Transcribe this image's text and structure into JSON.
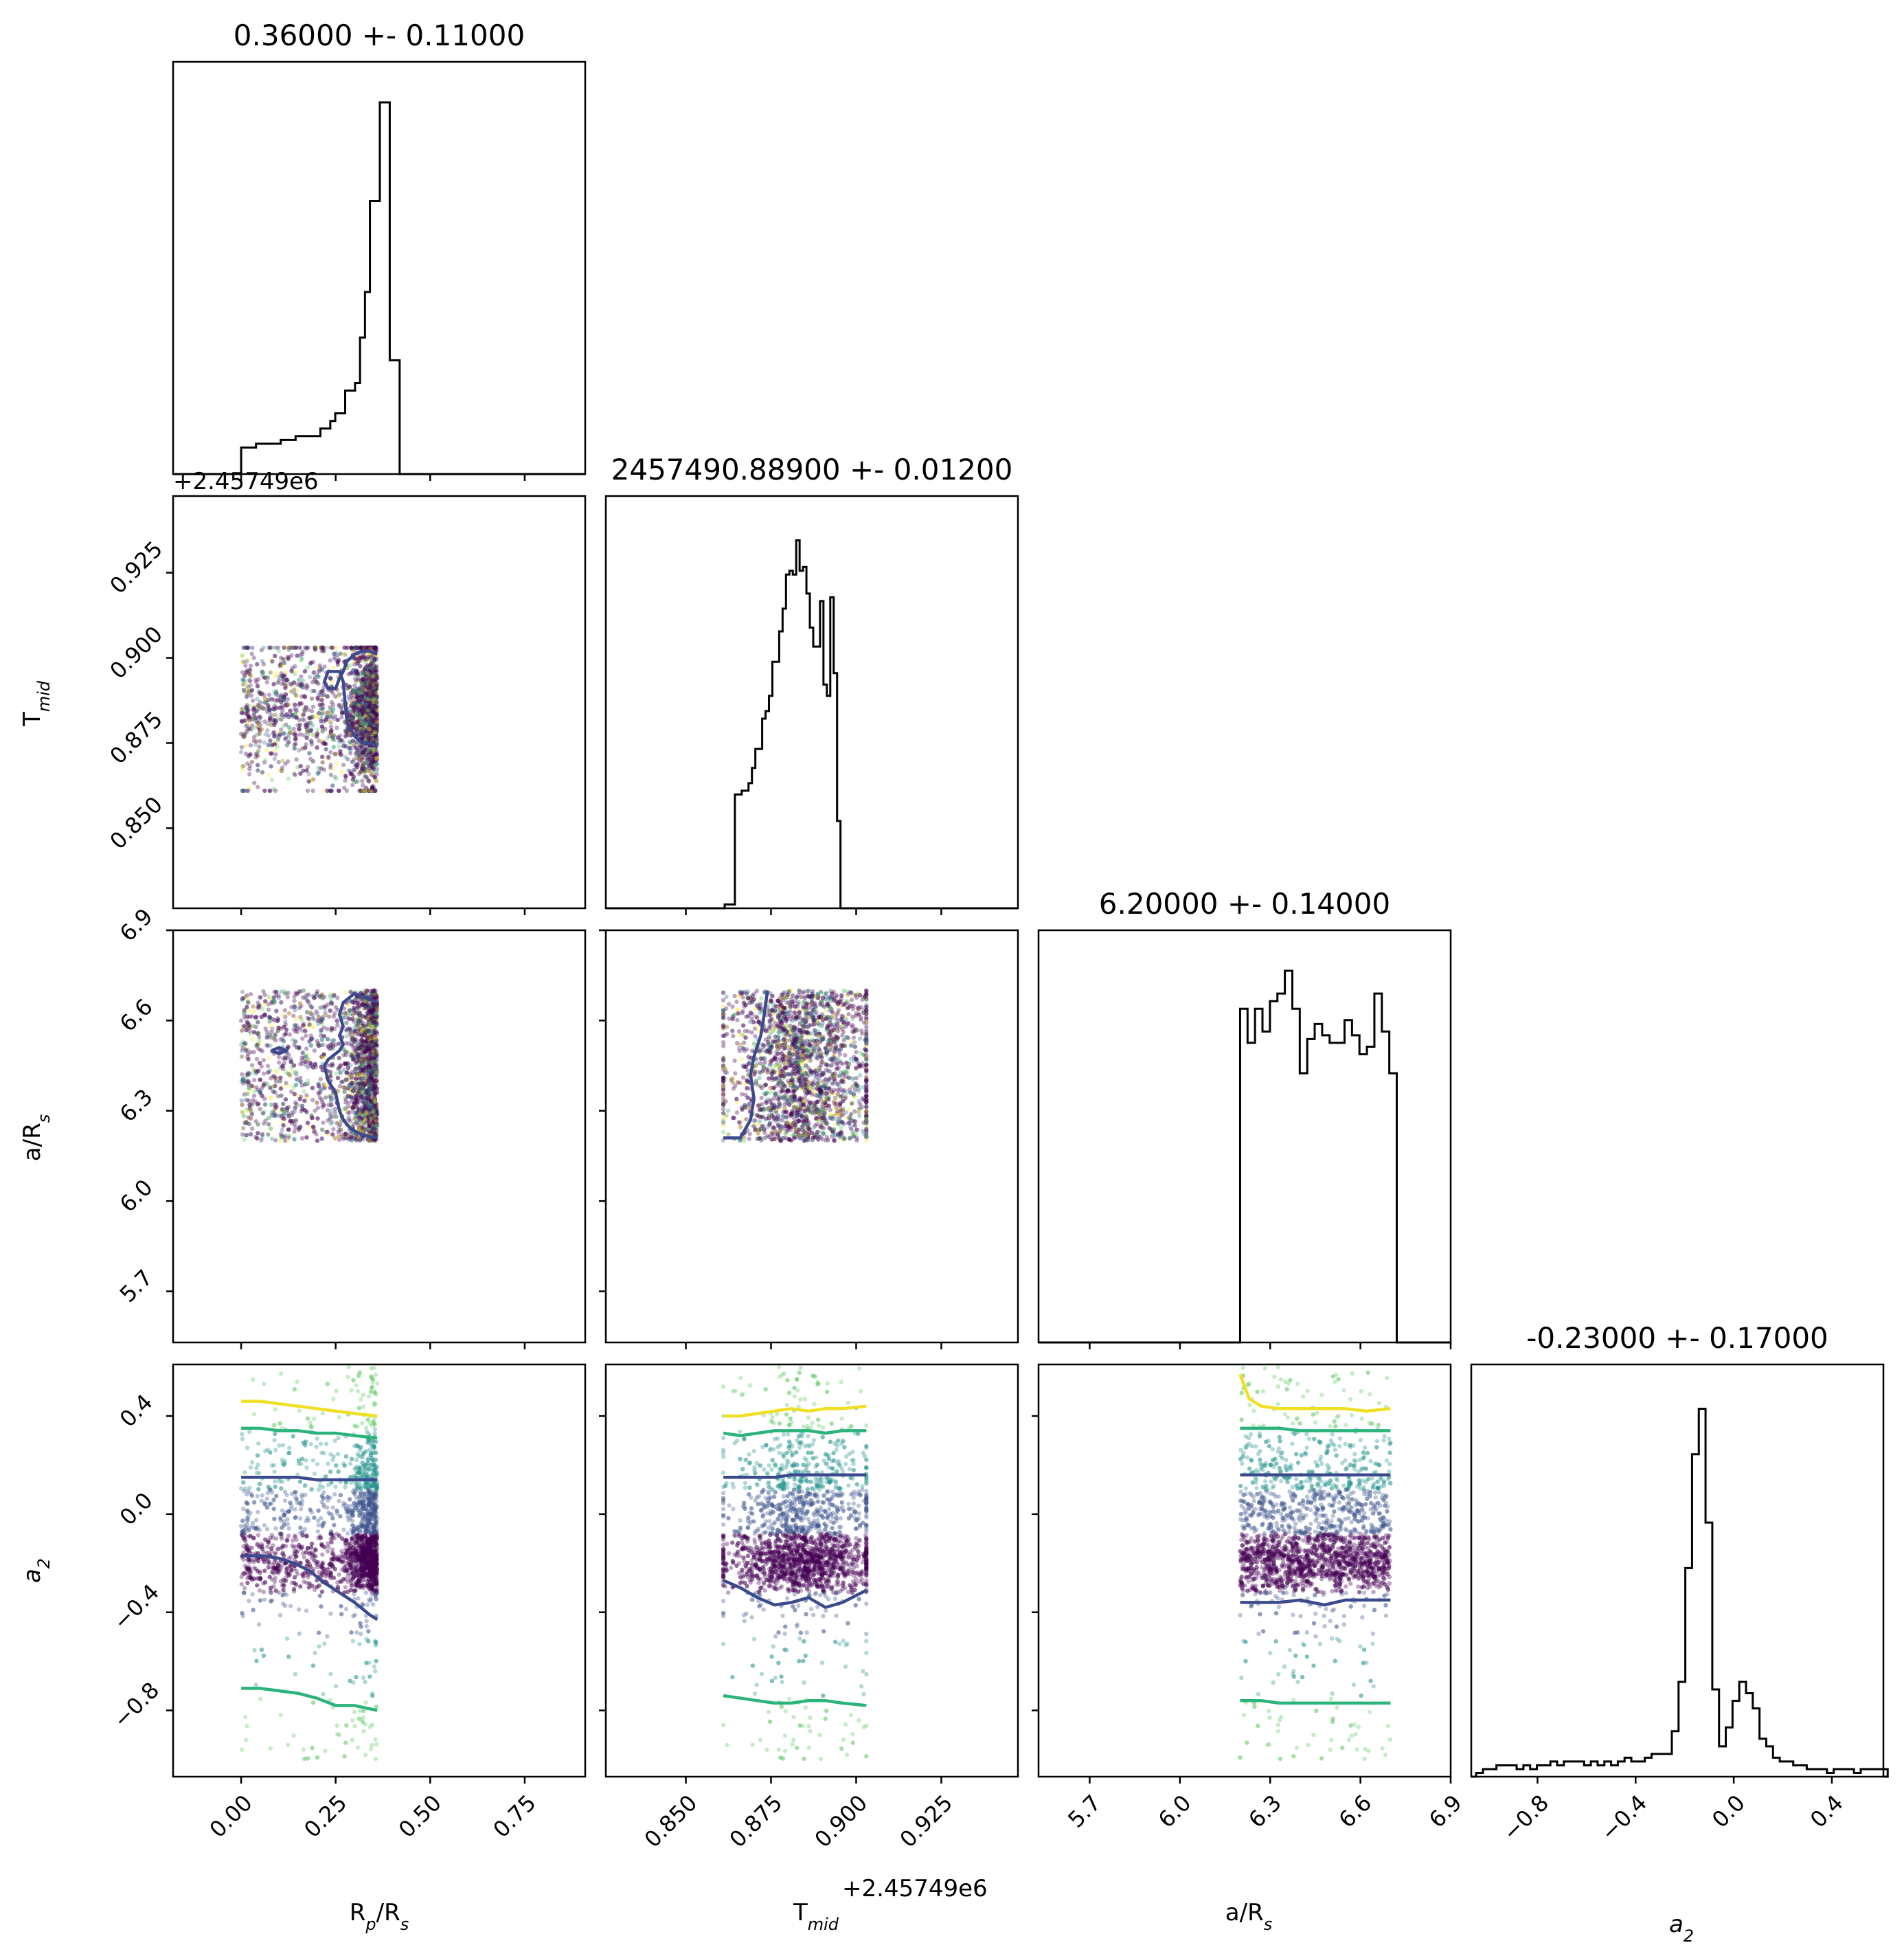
{
  "chart_data": {
    "type": "corner",
    "colors": {
      "hist": "#000000",
      "contour_inner": "#3b4a8c",
      "contour_mid": "#2ab37a",
      "contour_outer": "#f0e024",
      "scatter_dense": "#440154"
    },
    "parameters": [
      {
        "id": "rp",
        "label_main": "R",
        "label_sub": "p",
        "label_tail": "/R",
        "label_sub2": "s",
        "title": "0.36000 +- 0.11000",
        "range": [
          -0.18,
          0.91
        ],
        "ticks": [
          0.0,
          0.25,
          0.5,
          0.75
        ],
        "tick_labels": [
          "0.00",
          "0.25",
          "0.50",
          "0.75"
        ]
      },
      {
        "id": "tmid",
        "label_main": "T",
        "label_sub": "mid",
        "label_tail": "",
        "label_sub2": "",
        "title": "2457490.88900 +- 0.01200",
        "range": [
          0.8265,
          0.9475
        ],
        "ticks": [
          0.85,
          0.875,
          0.9,
          0.925
        ],
        "tick_labels": [
          "0.850",
          "0.875",
          "0.900",
          "0.925"
        ],
        "offset_label": "+2.45749e6"
      },
      {
        "id": "ars",
        "label_main": "a/R",
        "label_sub": "s",
        "label_tail": "",
        "label_sub2": "",
        "title": "6.20000 +- 0.14000",
        "range": [
          5.53,
          6.9
        ],
        "ticks": [
          5.7,
          6.0,
          6.3,
          6.6,
          6.9
        ],
        "tick_labels": [
          "5.7",
          "6.0",
          "6.3",
          "6.6",
          "6.9"
        ]
      },
      {
        "id": "a2",
        "label_main": "a",
        "label_sub": "2",
        "label_tail": "",
        "label_sub2": "",
        "italic": true,
        "title": "-0.23000 +- 0.17000",
        "range": [
          -1.07,
          0.61
        ],
        "ticks": [
          -0.8,
          -0.4,
          0.0,
          0.4
        ],
        "tick_labels": [
          "−0.8",
          "−0.4",
          "0.0",
          "0.4"
        ]
      }
    ],
    "histograms": {
      "rp": {
        "edges_start": 0.0,
        "bin_width": 0.0131,
        "counts": [
          0.07,
          0.07,
          0.07,
          0.08,
          0.08,
          0.08,
          0.08,
          0.08,
          0.09,
          0.09,
          0.09,
          0.1,
          0.1,
          0.1,
          0.1,
          0.1,
          0.12,
          0.12,
          0.14,
          0.16,
          0.16,
          0.22,
          0.22,
          0.24,
          0.36,
          0.48,
          0.72,
          0.72,
          0.98,
          0.98,
          0.3,
          0.3
        ]
      },
      "tmid": {
        "edges_start": 0.8614,
        "bin_width": 0.001,
        "counts": [
          0.01,
          0.01,
          0.01,
          0.3,
          0.3,
          0.31,
          0.31,
          0.33,
          0.37,
          0.42,
          0.42,
          0.5,
          0.52,
          0.56,
          0.65,
          0.65,
          0.73,
          0.79,
          0.88,
          0.89,
          0.88,
          0.97,
          0.89,
          0.9,
          0.83,
          0.74,
          0.69,
          0.69,
          0.81,
          0.59,
          0.56,
          0.82,
          0.62,
          0.23,
          0.0
        ]
      },
      "ars": {
        "edges_start": 6.2,
        "bin_width": 0.0248,
        "counts": [
          0.88,
          0.79,
          0.88,
          0.82,
          0.9,
          0.92,
          0.98,
          0.88,
          0.71,
          0.8,
          0.84,
          0.81,
          0.79,
          0.79,
          0.85,
          0.81,
          0.76,
          0.78,
          0.92,
          0.82,
          0.71,
          0.0
        ]
      },
      "a2": {
        "edges_start": -1.05,
        "bin_width": 0.0275,
        "counts": [
          0.01,
          0.02,
          0.02,
          0.03,
          0.03,
          0.03,
          0.02,
          0.03,
          0.02,
          0.03,
          0.03,
          0.04,
          0.03,
          0.04,
          0.04,
          0.04,
          0.03,
          0.04,
          0.03,
          0.04,
          0.03,
          0.04,
          0.05,
          0.04,
          0.04,
          0.05,
          0.06,
          0.06,
          0.06,
          0.12,
          0.25,
          0.55,
          0.85,
          0.97,
          0.67,
          0.23,
          0.08,
          0.13,
          0.2,
          0.25,
          0.22,
          0.18,
          0.1,
          0.08,
          0.05,
          0.04,
          0.04,
          0.03,
          0.03,
          0.02,
          0.02,
          0.02,
          0.01,
          0.02,
          0.02,
          0.02,
          0.01,
          0.02,
          0.02,
          0.02,
          0.02
        ]
      }
    },
    "scatter_ranges": {
      "rp": [
        0.0,
        0.36
      ],
      "tmid": [
        0.861,
        0.903
      ],
      "ars": [
        6.2,
        6.7
      ],
      "a2": [
        -1.0,
        0.6
      ]
    },
    "contours": {
      "tmid_vs_rp": [
        {
          "level": "inner",
          "x": [
            0.36,
            0.34,
            0.32,
            0.3,
            0.28,
            0.27,
            0.26,
            0.25,
            0.23,
            0.22,
            0.23,
            0.25,
            0.26,
            0.27,
            0.28,
            0.3,
            0.32,
            0.34,
            0.36
          ],
          "y": [
            0.901,
            0.902,
            0.902,
            0.901,
            0.899,
            0.896,
            0.894,
            0.891,
            0.891,
            0.893,
            0.896,
            0.896,
            0.896,
            0.893,
            0.881,
            0.877,
            0.875,
            0.875,
            0.874
          ]
        }
      ],
      "ars_vs_rp": [
        {
          "level": "inner",
          "x": [
            0.36,
            0.3,
            0.27,
            0.26,
            0.27,
            0.26,
            0.27,
            0.26,
            0.23,
            0.22,
            0.23,
            0.25,
            0.26,
            0.27,
            0.29,
            0.32,
            0.36
          ],
          "y": [
            6.66,
            6.69,
            6.66,
            6.62,
            6.58,
            6.55,
            6.52,
            6.5,
            6.47,
            6.45,
            6.4,
            6.36,
            6.3,
            6.27,
            6.24,
            6.22,
            6.21
          ]
        },
        {
          "level": "inner",
          "x": [
            0.08,
            0.1,
            0.12,
            0.1,
            0.08
          ],
          "y": [
            6.5,
            6.51,
            6.5,
            6.49,
            6.5
          ]
        }
      ],
      "a2_vs_rp": [
        {
          "level": "outer",
          "x": [
            0.0,
            0.05,
            0.1,
            0.15,
            0.2,
            0.25,
            0.3,
            0.36
          ],
          "y": [
            0.46,
            0.46,
            0.45,
            0.44,
            0.43,
            0.42,
            0.41,
            0.4
          ]
        },
        {
          "level": "mid",
          "x": [
            0.0,
            0.05,
            0.1,
            0.15,
            0.2,
            0.25,
            0.3,
            0.36
          ],
          "y": [
            0.35,
            0.35,
            0.34,
            0.34,
            0.33,
            0.33,
            0.32,
            0.31
          ]
        },
        {
          "level": "inner",
          "x": [
            0.0,
            0.05,
            0.1,
            0.15,
            0.2,
            0.25,
            0.3,
            0.36
          ],
          "y": [
            0.15,
            0.15,
            0.15,
            0.15,
            0.14,
            0.14,
            0.14,
            0.14
          ]
        },
        {
          "level": "inner",
          "x": [
            0.0,
            0.03,
            0.06,
            0.1,
            0.14,
            0.18,
            0.22,
            0.26,
            0.3,
            0.34,
            0.36
          ],
          "y": [
            -0.17,
            -0.17,
            -0.17,
            -0.18,
            -0.2,
            -0.23,
            -0.28,
            -0.32,
            -0.36,
            -0.41,
            -0.43
          ]
        },
        {
          "level": "mid",
          "x": [
            0.0,
            0.05,
            0.1,
            0.15,
            0.2,
            0.25,
            0.3,
            0.36
          ],
          "y": [
            -0.71,
            -0.71,
            -0.72,
            -0.73,
            -0.75,
            -0.78,
            -0.78,
            -0.8
          ]
        }
      ],
      "a2_vs_tmid": [
        {
          "level": "outer",
          "x": [
            0.861,
            0.866,
            0.871,
            0.876,
            0.881,
            0.886,
            0.891,
            0.896,
            0.903
          ],
          "y": [
            0.4,
            0.4,
            0.41,
            0.42,
            0.43,
            0.42,
            0.43,
            0.43,
            0.44
          ]
        },
        {
          "level": "mid",
          "x": [
            0.861,
            0.866,
            0.871,
            0.876,
            0.881,
            0.886,
            0.891,
            0.896,
            0.903
          ],
          "y": [
            0.33,
            0.32,
            0.33,
            0.34,
            0.34,
            0.34,
            0.33,
            0.34,
            0.34
          ]
        },
        {
          "level": "inner",
          "x": [
            0.861,
            0.866,
            0.871,
            0.876,
            0.881,
            0.886,
            0.891,
            0.896,
            0.903
          ],
          "y": [
            0.15,
            0.15,
            0.15,
            0.15,
            0.16,
            0.16,
            0.16,
            0.16,
            0.16
          ]
        },
        {
          "level": "inner",
          "x": [
            0.861,
            0.866,
            0.871,
            0.876,
            0.881,
            0.886,
            0.891,
            0.896,
            0.903
          ],
          "y": [
            -0.27,
            -0.3,
            -0.34,
            -0.37,
            -0.36,
            -0.34,
            -0.38,
            -0.36,
            -0.31
          ]
        },
        {
          "level": "mid",
          "x": [
            0.861,
            0.866,
            0.871,
            0.876,
            0.881,
            0.886,
            0.891,
            0.896,
            0.903
          ],
          "y": [
            -0.74,
            -0.75,
            -0.76,
            -0.77,
            -0.77,
            -0.76,
            -0.76,
            -0.77,
            -0.78
          ]
        }
      ],
      "ars_vs_tmid": [
        {
          "level": "inner",
          "x": [
            0.861,
            0.866,
            0.869,
            0.87,
            0.869,
            0.87,
            0.872,
            0.873,
            0.874
          ],
          "y": [
            6.21,
            6.21,
            6.27,
            6.34,
            6.42,
            6.48,
            6.55,
            6.62,
            6.7
          ]
        }
      ],
      "a2_vs_ars": [
        {
          "level": "outer",
          "x": [
            6.2,
            6.23,
            6.27,
            6.33,
            6.4,
            6.48,
            6.55,
            6.62,
            6.7
          ],
          "y": [
            0.57,
            0.47,
            0.44,
            0.43,
            0.43,
            0.43,
            0.43,
            0.42,
            0.43
          ]
        },
        {
          "level": "mid",
          "x": [
            6.2,
            6.27,
            6.33,
            6.4,
            6.48,
            6.55,
            6.62,
            6.7
          ],
          "y": [
            0.35,
            0.35,
            0.35,
            0.34,
            0.34,
            0.34,
            0.34,
            0.34
          ]
        },
        {
          "level": "inner",
          "x": [
            6.2,
            6.27,
            6.33,
            6.4,
            6.48,
            6.55,
            6.62,
            6.7
          ],
          "y": [
            0.16,
            0.16,
            0.16,
            0.16,
            0.16,
            0.16,
            0.16,
            0.16
          ]
        },
        {
          "level": "inner",
          "x": [
            6.2,
            6.27,
            6.33,
            6.4,
            6.48,
            6.55,
            6.62,
            6.7
          ],
          "y": [
            -0.36,
            -0.36,
            -0.36,
            -0.35,
            -0.37,
            -0.35,
            -0.35,
            -0.35
          ]
        },
        {
          "level": "mid",
          "x": [
            6.2,
            6.27,
            6.33,
            6.4,
            6.48,
            6.55,
            6.62,
            6.7
          ],
          "y": [
            -0.76,
            -0.76,
            -0.77,
            -0.77,
            -0.77,
            -0.77,
            -0.77,
            -0.77
          ]
        }
      ]
    }
  }
}
